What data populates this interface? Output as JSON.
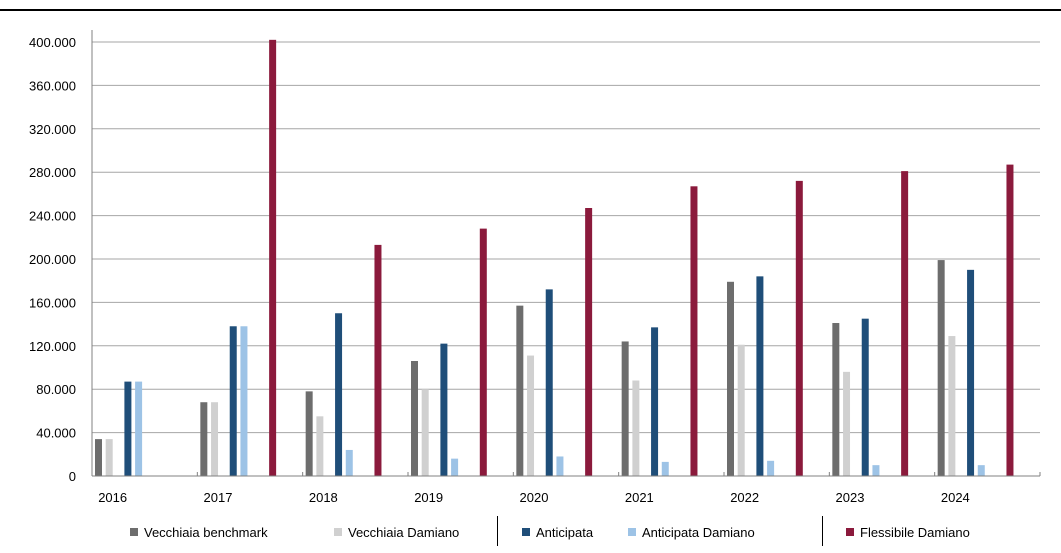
{
  "chart_data": {
    "type": "bar",
    "title": "",
    "xlabel": "",
    "ylabel": "",
    "categories": [
      "2016",
      "2017",
      "2018",
      "2019",
      "2020",
      "2021",
      "2022",
      "2023",
      "2024"
    ],
    "ylim": [
      0,
      400000
    ],
    "yticks": [
      0,
      40000,
      80000,
      120000,
      160000,
      200000,
      240000,
      280000,
      320000,
      360000,
      400000
    ],
    "ytick_labels": [
      "0",
      "40.000",
      "80.000",
      "120.000",
      "160.000",
      "200.000",
      "240.000",
      "280.000",
      "320.000",
      "360.000",
      "400.000"
    ],
    "grid": true,
    "legend_position": "bottom",
    "series": [
      {
        "name": "Vecchiaia benchmark",
        "color": "#6d6d6d",
        "values": [
          34000,
          68000,
          78000,
          106000,
          157000,
          124000,
          179000,
          141000,
          199000
        ]
      },
      {
        "name": "Vecchiaia Damiano",
        "color": "#d0d0d0",
        "values": [
          34000,
          68000,
          55000,
          80000,
          111000,
          88000,
          121000,
          96000,
          129000
        ]
      },
      {
        "name": "Anticipata",
        "color": "#1f4e79",
        "values": [
          87000,
          138000,
          150000,
          122000,
          172000,
          137000,
          184000,
          145000,
          190000
        ]
      },
      {
        "name": "Anticipata Damiano",
        "color": "#9dc3e6",
        "values": [
          87000,
          138000,
          24000,
          16000,
          18000,
          13000,
          14000,
          10000,
          10000
        ]
      },
      {
        "name": "Flessibile Damiano",
        "color": "#8b1a3c",
        "values": [
          0,
          402000,
          213000,
          228000,
          247000,
          267000,
          272000,
          281000,
          287000
        ]
      }
    ]
  }
}
